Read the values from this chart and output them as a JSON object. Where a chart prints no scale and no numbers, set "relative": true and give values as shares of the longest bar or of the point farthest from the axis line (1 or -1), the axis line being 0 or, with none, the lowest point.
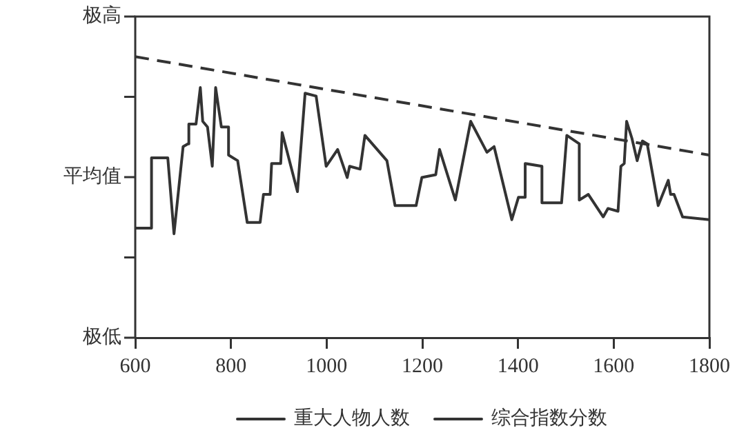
{
  "chart_data": {
    "type": "line",
    "relative": true,
    "xlim": [
      600,
      1800
    ],
    "xticks": [
      600,
      800,
      1000,
      1200,
      1400,
      1600,
      1800
    ],
    "annotations": [
      "极高",
      "平均值",
      "极低"
    ],
    "grid": false,
    "legend": "bottom",
    "marker": "none",
    "series": [
      {
        "name": "重大人物人数",
        "color": "#333333",
        "line_style": "solid",
        "x": [
          600,
          634,
          634,
          668,
          681,
          700,
          710,
          712,
          727,
          736,
          741,
          751,
          761,
          768,
          780,
          795,
          795,
          814,
          834,
          861,
          868,
          882,
          885,
          904,
          907,
          939,
          955,
          978,
          999,
          1023,
          1043,
          1048,
          1070,
          1080,
          1126,
          1143,
          1187,
          1199,
          1228,
          1236,
          1269,
          1301,
          1335,
          1350,
          1387,
          1401,
          1415,
          1415,
          1450,
          1450,
          1491,
          1502,
          1528,
          1528,
          1547,
          1578,
          1588,
          1609,
          1615,
          1622,
          1627,
          1638,
          1649,
          1660,
          1670,
          1693,
          1714,
          1719,
          1726,
          1744,
          1800
        ],
        "values": [
          0.39,
          0.39,
          0.64,
          0.64,
          0.37,
          0.68,
          0.69,
          0.76,
          0.76,
          0.89,
          0.77,
          0.75,
          0.61,
          0.89,
          0.75,
          0.75,
          0.65,
          0.63,
          0.41,
          0.41,
          0.51,
          0.51,
          0.62,
          0.62,
          0.73,
          0.52,
          0.87,
          0.86,
          0.61,
          0.67,
          0.57,
          0.61,
          0.6,
          0.72,
          0.63,
          0.47,
          0.47,
          0.57,
          0.58,
          0.67,
          0.49,
          0.77,
          0.66,
          0.68,
          0.42,
          0.5,
          0.5,
          0.62,
          0.61,
          0.48,
          0.48,
          0.72,
          0.69,
          0.49,
          0.51,
          0.43,
          0.46,
          0.45,
          0.61,
          0.62,
          0.77,
          0.71,
          0.63,
          0.7,
          0.69,
          0.47,
          0.56,
          0.51,
          0.51,
          0.43,
          0.42
        ]
      },
      {
        "name": "综合指数分数",
        "color": "#333333",
        "line_style": "dashed",
        "x": [
          600,
          1800
        ],
        "values": [
          1,
          0.65
        ]
      }
    ]
  }
}
